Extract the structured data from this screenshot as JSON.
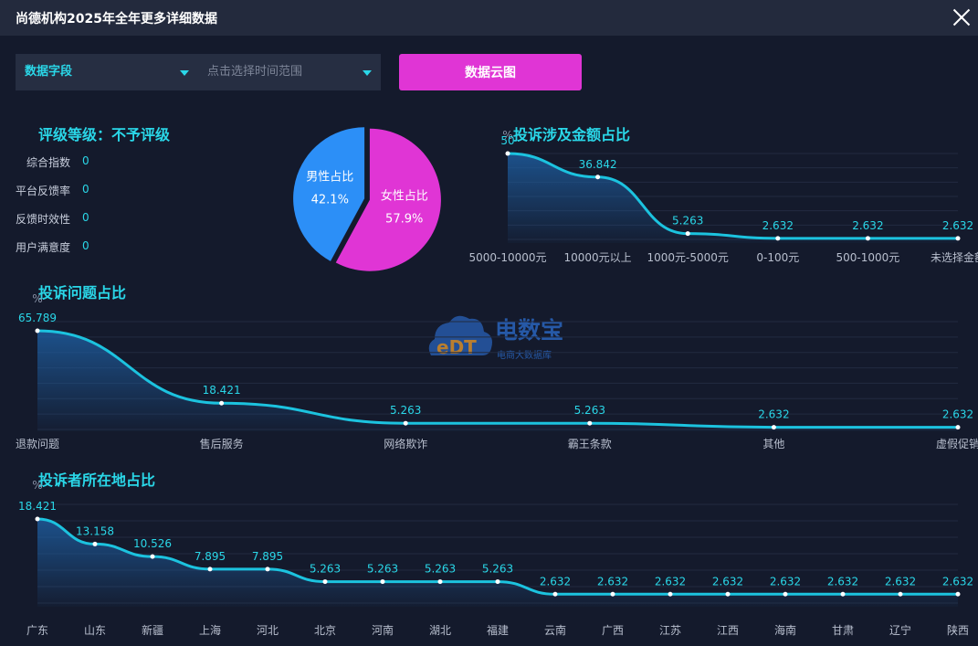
{
  "header": {
    "title": "尚德机构2025年全年更多详细数据"
  },
  "filters": {
    "field_label": "数据字段",
    "time_placeholder": "点击选择时间范围",
    "cloud_button": "数据云图"
  },
  "rating": {
    "title": "评级等级：不予评级",
    "metrics": [
      {
        "label": "综合指数",
        "value": "0"
      },
      {
        "label": "平台反馈率",
        "value": "0"
      },
      {
        "label": "反馈时效性",
        "value": "0"
      },
      {
        "label": "用户满意度",
        "value": "0"
      }
    ]
  },
  "watermark": {
    "main": "电数宝",
    "sub": "电商大数据库",
    "badge": "eDT"
  },
  "colors": {
    "accent": "#2ad7e8",
    "male": "#2c8ff7",
    "female": "#e035d5",
    "line": "#1cc3df",
    "background": "#141a2c"
  },
  "chart_data": [
    {
      "type": "pie",
      "title": "",
      "categories": [
        "男性占比",
        "女性占比"
      ],
      "values": [
        42.1,
        57.9
      ],
      "labels": [
        "42.1%",
        "57.9%"
      ]
    },
    {
      "type": "area",
      "title": "投诉涉及金额占比",
      "ylabel": "%",
      "categories": [
        "5000-10000元",
        "10000元以上",
        "1000元-5000元",
        "0-100元",
        "500-1000元",
        "未选择金额"
      ],
      "values": [
        50,
        36.842,
        5.263,
        2.632,
        2.632,
        2.632
      ],
      "labels": [
        "50",
        "36.842",
        "5.263",
        "2.632",
        "2.632",
        "2.632"
      ],
      "ylim": [
        0,
        50
      ],
      "grid": true
    },
    {
      "type": "area",
      "title": "投诉问题占比",
      "ylabel": "%",
      "categories": [
        "退款问题",
        "售后服务",
        "网络欺诈",
        "霸王条款",
        "其他",
        "虚假促销"
      ],
      "values": [
        65.789,
        18.421,
        5.263,
        5.263,
        2.632,
        2.632
      ],
      "labels": [
        "65.789",
        "18.421",
        "5.263",
        "5.263",
        "2.632",
        "2.632"
      ],
      "ylim": [
        0,
        70
      ],
      "grid": true
    },
    {
      "type": "area",
      "title": "投诉者所在地占比",
      "ylabel": "%",
      "categories": [
        "广东",
        "山东",
        "新疆",
        "上海",
        "河北",
        "北京",
        "河南",
        "湖北",
        "福建",
        "云南",
        "广西",
        "江苏",
        "江西",
        "海南",
        "甘肃",
        "辽宁",
        "陕西"
      ],
      "values": [
        18.421,
        13.158,
        10.526,
        7.895,
        7.895,
        5.263,
        5.263,
        5.263,
        5.263,
        2.632,
        2.632,
        2.632,
        2.632,
        2.632,
        2.632,
        2.632,
        2.632
      ],
      "labels": [
        "18.421",
        "13.158",
        "10.526",
        "7.895",
        "7.895",
        "5.263",
        "5.263",
        "5.263",
        "5.263",
        "2.632",
        "2.632",
        "2.632",
        "2.632",
        "2.632",
        "2.632",
        "2.632",
        "2.632"
      ],
      "ylim": [
        0,
        18.421
      ],
      "grid": true
    }
  ]
}
